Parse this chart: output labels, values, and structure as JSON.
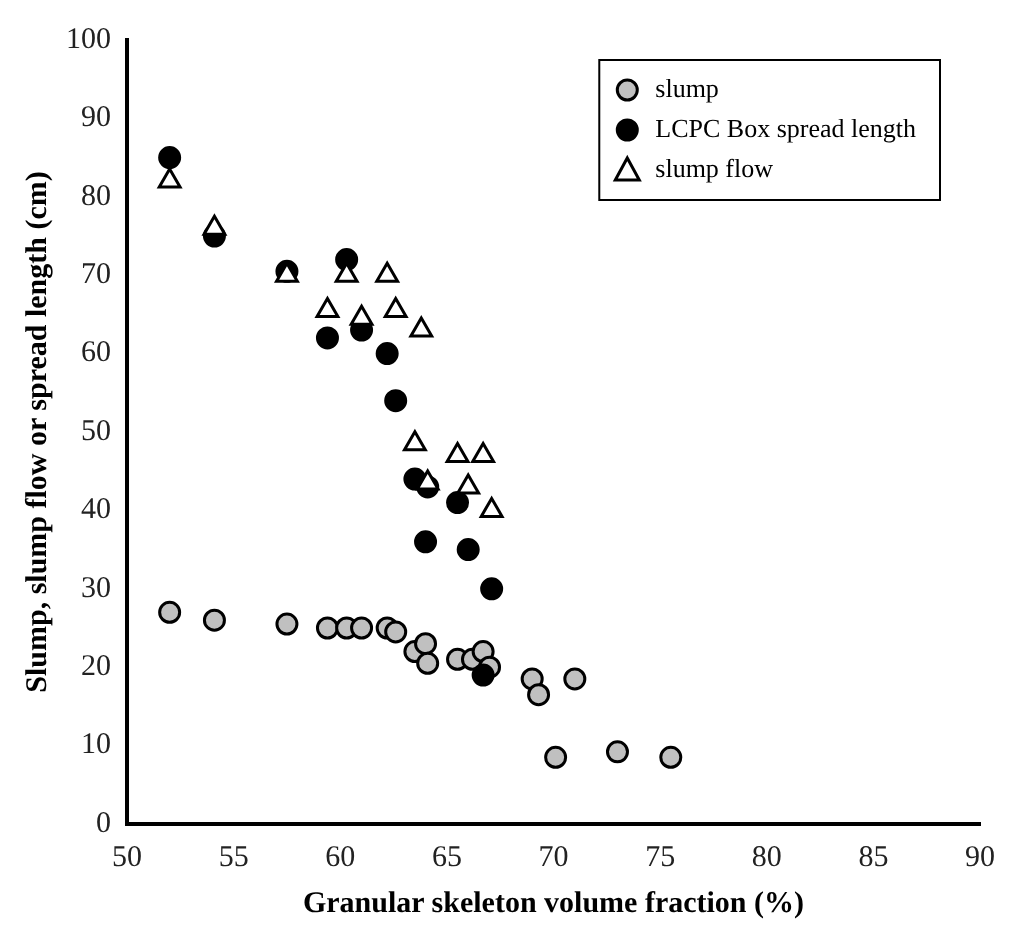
{
  "chart_data": {
    "type": "scatter",
    "xlabel": "Granular skeleton volume fraction (%)",
    "ylabel": "Slump, slump flow or spread length (cm)",
    "xlim": [
      50,
      90
    ],
    "xticks": [
      50,
      55,
      60,
      65,
      70,
      75,
      80,
      85,
      90
    ],
    "ylim": [
      0,
      100
    ],
    "yticks": [
      0,
      10,
      20,
      30,
      40,
      50,
      60,
      70,
      80,
      90,
      100
    ],
    "grid": false,
    "legend": "top right",
    "series": [
      {
        "name": "slump",
        "color": "#c0c0c0",
        "marker": "circle",
        "x": [
          52,
          54.1,
          57.5,
          59.4,
          60.3,
          61,
          62.2,
          62.6,
          63.5,
          64,
          64.1,
          65.5,
          66.2,
          66.7,
          67,
          69,
          69.3,
          71,
          70.1,
          73,
          75.5
        ],
        "values": [
          27,
          26,
          25.5,
          25,
          25,
          25,
          25,
          24.5,
          22,
          23,
          20.5,
          21,
          21,
          22,
          20,
          18.5,
          16.5,
          18.5,
          8.5,
          9.2,
          8.5
        ]
      },
      {
        "name": "LCPC Box spread length",
        "color": "#000000",
        "marker": "circle",
        "x": [
          52,
          54.1,
          57.5,
          59.4,
          60.3,
          61,
          62.2,
          62.6,
          63.5,
          64.1,
          64,
          65.5,
          66,
          66.7,
          67.1
        ],
        "values": [
          85,
          75,
          70.5,
          62,
          72,
          63,
          60,
          54,
          44,
          43,
          36,
          41,
          35,
          19,
          30
        ]
      },
      {
        "name": "slump flow",
        "color": "#ffffff",
        "marker": "triangle",
        "x": [
          52,
          54.1,
          57.5,
          59.4,
          60.3,
          61,
          62.2,
          62.6,
          63.8,
          63.5,
          64.1,
          65.5,
          66.7,
          66,
          67.1
        ],
        "values": [
          82,
          76,
          70,
          65.5,
          70,
          64.5,
          70,
          65.5,
          63,
          48.5,
          43.5,
          47,
          47,
          43,
          40
        ]
      }
    ]
  }
}
